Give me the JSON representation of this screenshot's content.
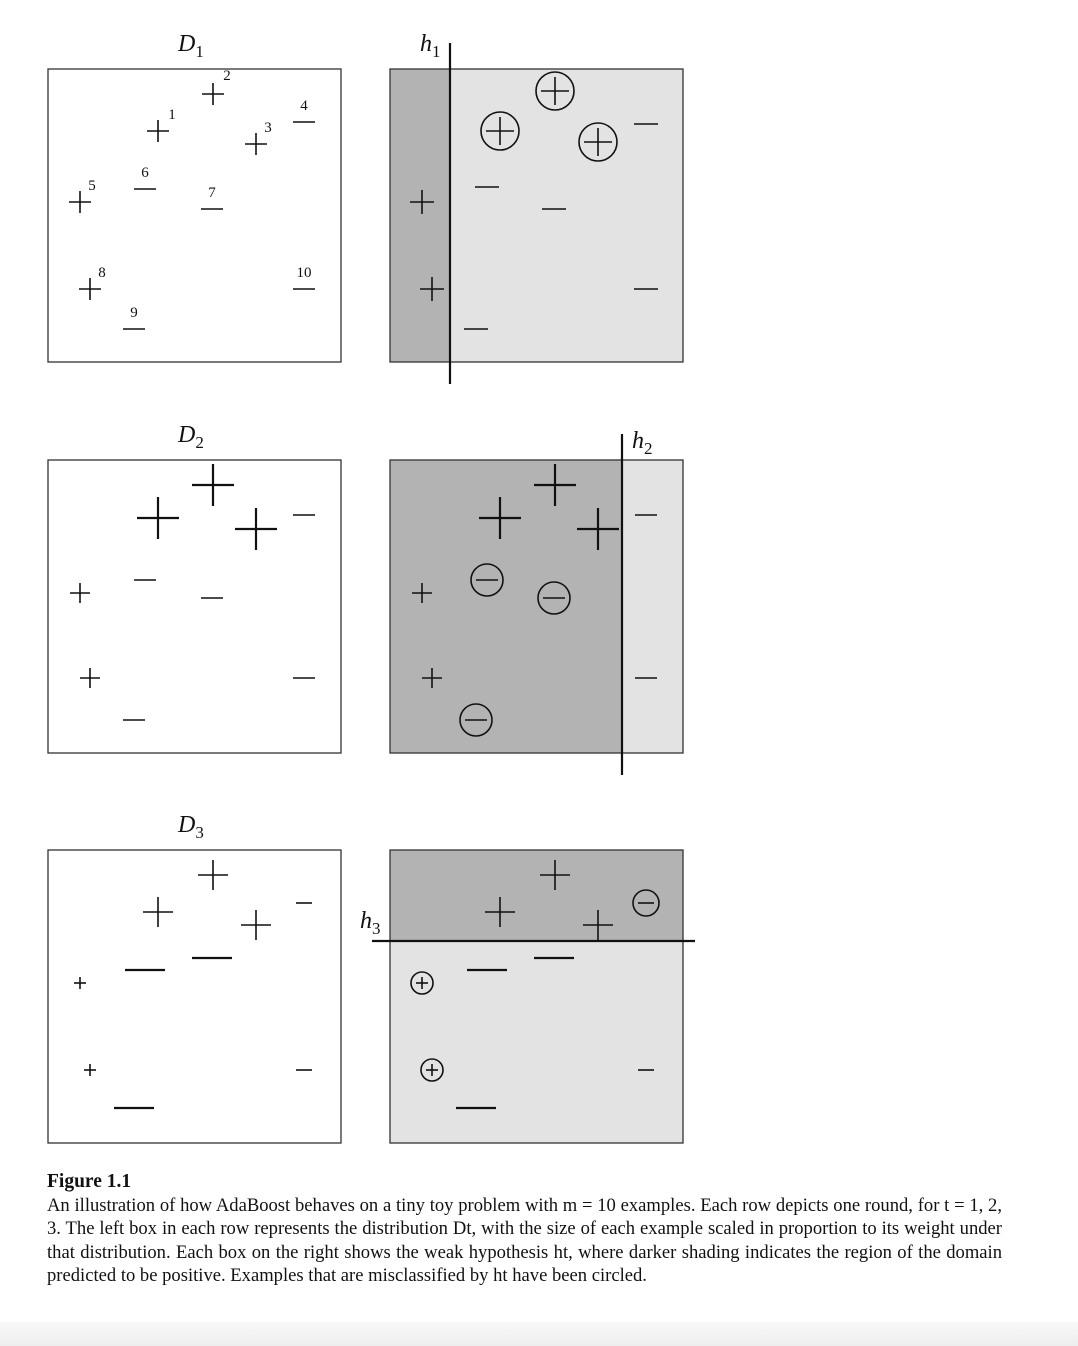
{
  "figure": {
    "rows": [
      {
        "dist_label": {
          "base": "D",
          "sub": "1"
        },
        "hyp_label": {
          "base": "h",
          "sub": "1"
        },
        "hyp_label_pos": "top",
        "split": "vertical",
        "left_points": [
          {
            "sign": "+",
            "id": "1",
            "weight": 1
          },
          {
            "sign": "+",
            "id": "2",
            "weight": 1
          },
          {
            "sign": "+",
            "id": "3",
            "weight": 1
          },
          {
            "sign": "-",
            "id": "4",
            "weight": 1
          },
          {
            "sign": "+",
            "id": "5",
            "weight": 1
          },
          {
            "sign": "-",
            "id": "6",
            "weight": 1
          },
          {
            "sign": "-",
            "id": "7",
            "weight": 1
          },
          {
            "sign": "+",
            "id": "8",
            "weight": 1
          },
          {
            "sign": "-",
            "id": "9",
            "weight": 1
          },
          {
            "sign": "-",
            "id": "10",
            "weight": 1
          }
        ],
        "right_points": [
          {
            "sign": "+",
            "circled": true
          },
          {
            "sign": "+",
            "circled": true
          },
          {
            "sign": "+",
            "circled": true
          },
          {
            "sign": "-",
            "circled": false
          },
          {
            "sign": "+",
            "circled": false
          },
          {
            "sign": "-",
            "circled": false
          },
          {
            "sign": "-",
            "circled": false
          },
          {
            "sign": "+",
            "circled": false
          },
          {
            "sign": "-",
            "circled": false
          },
          {
            "sign": "-",
            "circled": false
          }
        ]
      },
      {
        "dist_label": {
          "base": "D",
          "sub": "2"
        },
        "hyp_label": {
          "base": "h",
          "sub": "2"
        },
        "hyp_label_pos": "top-right",
        "split": "vertical",
        "left_points": [
          {
            "sign": "+"
          },
          {
            "sign": "+"
          },
          {
            "sign": "+"
          },
          {
            "sign": "-"
          },
          {
            "sign": "+"
          },
          {
            "sign": "-"
          },
          {
            "sign": "-"
          },
          {
            "sign": "+"
          },
          {
            "sign": "-"
          },
          {
            "sign": "-"
          }
        ],
        "right_points": [
          {
            "sign": "+",
            "circled": false
          },
          {
            "sign": "+",
            "circled": false
          },
          {
            "sign": "+",
            "circled": false
          },
          {
            "sign": "-",
            "circled": false
          },
          {
            "sign": "+",
            "circled": false
          },
          {
            "sign": "-",
            "circled": true
          },
          {
            "sign": "-",
            "circled": true
          },
          {
            "sign": "+",
            "circled": false
          },
          {
            "sign": "-",
            "circled": true
          },
          {
            "sign": "-",
            "circled": false
          }
        ]
      },
      {
        "dist_label": {
          "base": "D",
          "sub": "3"
        },
        "hyp_label": {
          "base": "h",
          "sub": "3"
        },
        "hyp_label_pos": "left",
        "split": "horizontal",
        "left_points": [
          {
            "sign": "+"
          },
          {
            "sign": "+"
          },
          {
            "sign": "+"
          },
          {
            "sign": "-"
          },
          {
            "sign": "+"
          },
          {
            "sign": "-"
          },
          {
            "sign": "-"
          },
          {
            "sign": "+"
          },
          {
            "sign": "-"
          },
          {
            "sign": "-"
          }
        ],
        "right_points": [
          {
            "sign": "+",
            "circled": false
          },
          {
            "sign": "+",
            "circled": false
          },
          {
            "sign": "+",
            "circled": false
          },
          {
            "sign": "-",
            "circled": true
          },
          {
            "sign": "+",
            "circled": true
          },
          {
            "sign": "-",
            "circled": false
          },
          {
            "sign": "-",
            "circled": false
          },
          {
            "sign": "+",
            "circled": true
          },
          {
            "sign": "-",
            "circled": false
          },
          {
            "sign": "-",
            "circled": false
          }
        ]
      }
    ],
    "colors": {
      "positive_region": "#b3b3b3",
      "negative_region": "#e3e3e3",
      "frame": "#333333",
      "ink": "#111111"
    }
  },
  "caption": {
    "title": "Figure 1.1",
    "text": "An illustration of how AdaBoost behaves on a tiny toy problem with m = 10 examples. Each row depicts one round, for t = 1, 2, 3. The left box in each row represents the distribution Dt, with the size of each example scaled in proportion to its weight under that distribution. Each box on the right shows the weak hypothesis ht, where darker shading indicates the region of the domain predicted to be positive. Examples that are misclassified by ht have been circled."
  }
}
